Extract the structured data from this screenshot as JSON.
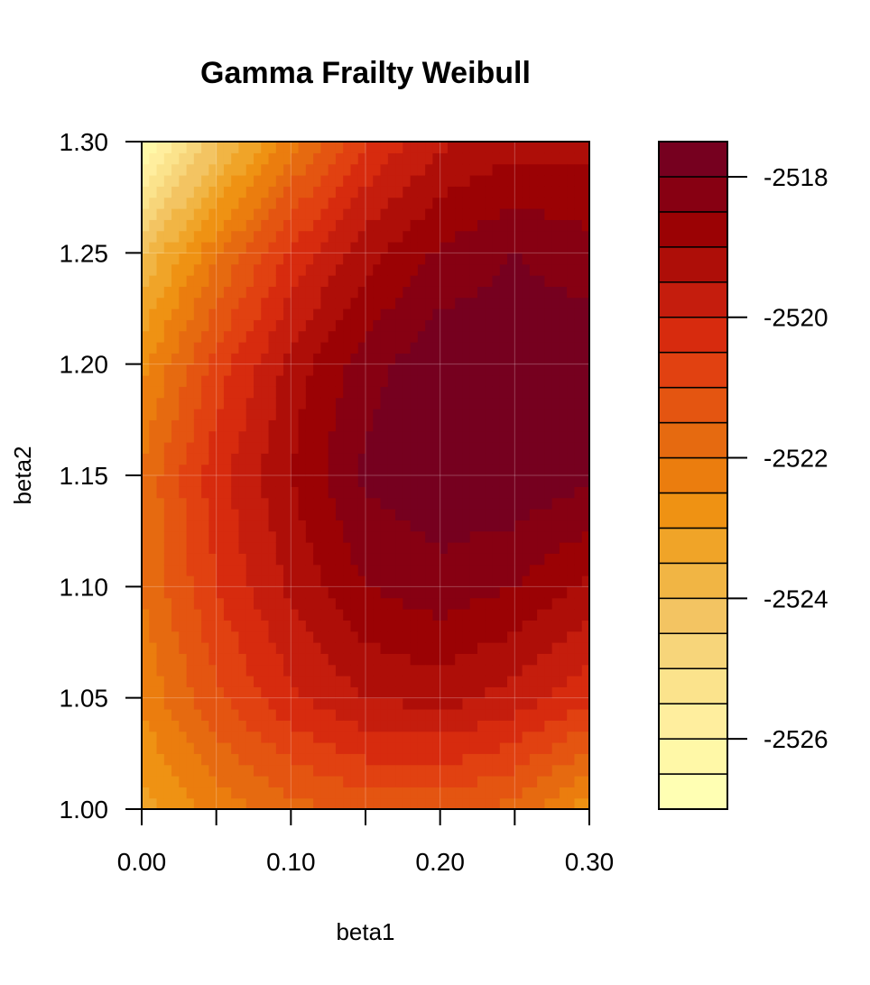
{
  "chart_data": {
    "type": "heatmap",
    "subtype": "filled-contour",
    "title": "Gamma Frailty Weibull",
    "xlabel": "beta1",
    "ylabel": "beta2",
    "xlim": [
      0,
      0.3
    ],
    "ylim": [
      1.0,
      1.3
    ],
    "x_ticks": [
      0.0,
      0.05,
      0.1,
      0.15,
      0.2,
      0.25,
      0.3
    ],
    "x_tick_labels": [
      "0.00",
      "",
      "0.10",
      "",
      "0.20",
      "",
      "0.30"
    ],
    "y_ticks": [
      1.0,
      1.05,
      1.1,
      1.15,
      1.2,
      1.25,
      1.3
    ],
    "y_tick_labels": [
      "1.00",
      "1.05",
      "1.10",
      "1.15",
      "1.20",
      "1.25",
      "1.30"
    ],
    "grid": true,
    "x": [
      0.0,
      0.05,
      0.1,
      0.15,
      0.2,
      0.25,
      0.3
    ],
    "y": [
      1.0,
      1.05,
      1.1,
      1.15,
      1.2,
      1.25,
      1.3
    ],
    "z": [
      [
        -2523.2,
        -2522.3,
        -2521.7,
        -2521.3,
        -2521.3,
        -2521.7,
        -2522.8
      ],
      [
        -2522.4,
        -2521.1,
        -2520.1,
        -2519.5,
        -2519.3,
        -2519.7,
        -2520.4
      ],
      [
        -2522.0,
        -2520.5,
        -2519.4,
        -2518.5,
        -2518.2,
        -2518.5,
        -2519.1
      ],
      [
        -2521.9,
        -2520.2,
        -2519.0,
        -2517.9,
        -2517.6,
        -2517.6,
        -2517.9
      ],
      [
        -2522.7,
        -2520.8,
        -2519.3,
        -2518.2,
        -2517.6,
        -2517.6,
        -2517.6
      ],
      [
        -2524.0,
        -2522.1,
        -2520.4,
        -2519.2,
        -2518.4,
        -2518.0,
        -2518.3
      ],
      [
        -2526.6,
        -2524.2,
        -2522.2,
        -2520.5,
        -2519.6,
        -2519.2,
        -2519.2
      ]
    ],
    "levels": [
      -2527.0,
      -2526.5,
      -2526.0,
      -2525.5,
      -2525.0,
      -2524.5,
      -2524.0,
      -2523.5,
      -2523.0,
      -2522.5,
      -2522.0,
      -2521.5,
      -2521.0,
      -2520.5,
      -2520.0,
      -2519.5,
      -2519.0,
      -2518.5,
      -2518.0,
      -2517.5
    ],
    "colors": [
      "#FFFFB3",
      "#FFF8A7",
      "#FFEE9E",
      "#FBE38C",
      "#F7D57A",
      "#F3C462",
      "#F1B544",
      "#F0A428",
      "#EF9213",
      "#EB7D0E",
      "#E66A10",
      "#E45511",
      "#E14111",
      "#D72B0E",
      "#C51D0D",
      "#AE0E08",
      "#9B0204",
      "#870012",
      "#76001F"
    ],
    "legend_ticks": [
      -2518,
      -2520,
      -2522,
      -2524,
      -2526
    ],
    "legend_placement": "right"
  }
}
